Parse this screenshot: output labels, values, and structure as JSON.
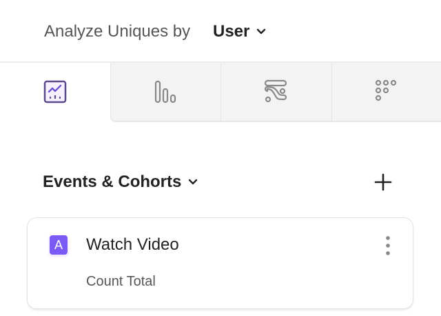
{
  "header": {
    "analyze_label": "Analyze Uniques by",
    "selected_entity": "User",
    "dropdown_icon": "chevron-down-icon"
  },
  "tabs": [
    {
      "name": "insights",
      "icon": "line-chart-icon",
      "active": true
    },
    {
      "name": "bar",
      "icon": "bar-chart-icon",
      "active": false
    },
    {
      "name": "flows",
      "icon": "flows-icon",
      "active": false
    },
    {
      "name": "retention",
      "icon": "retention-grid-icon",
      "active": false
    }
  ],
  "section": {
    "title": "Events & Cohorts",
    "add_icon": "plus-icon"
  },
  "events": [
    {
      "letter": "A",
      "name": "Watch Video",
      "measure": "Count Total",
      "menu_icon": "more-vertical-icon"
    }
  ],
  "colors": {
    "accent": "#7a5af5",
    "tab_inactive": "#f3f3f3"
  }
}
